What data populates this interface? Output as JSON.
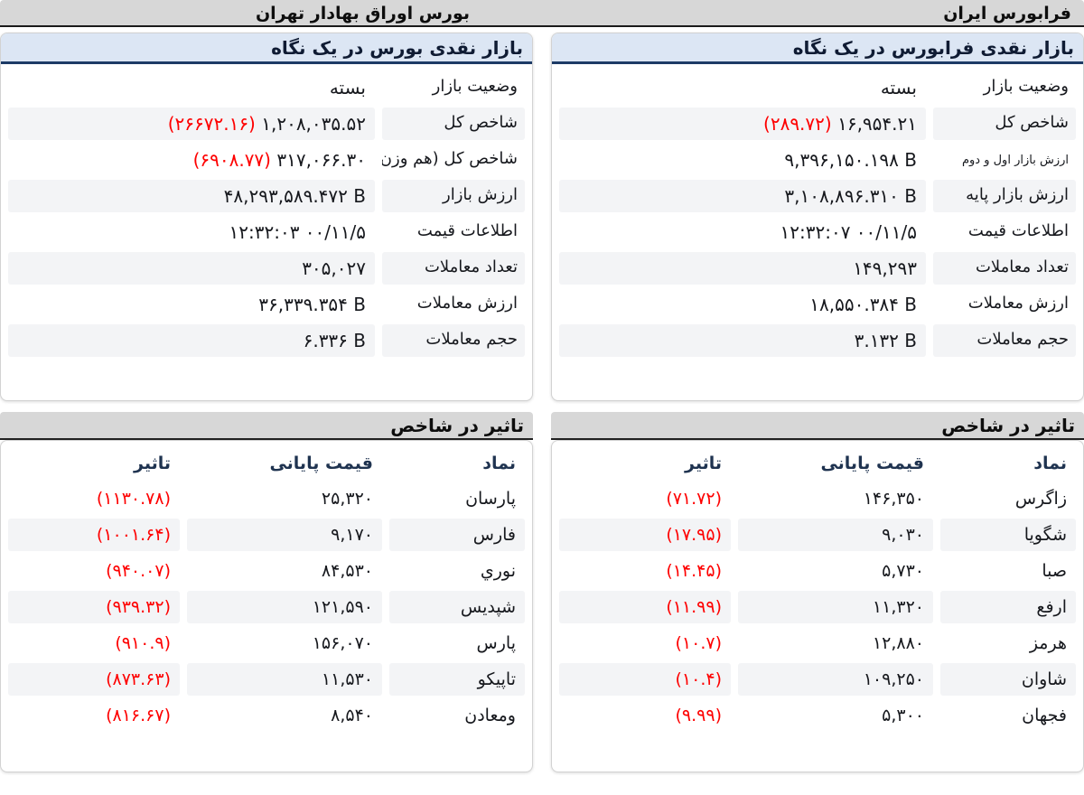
{
  "colors": {
    "negative": "#fe0000",
    "panel_header_bg": "#dce6f4",
    "bar_bg": "#d7d7d7",
    "header_text": "#0f1b33"
  },
  "columns": [
    {
      "id": "tehran-bourse",
      "header": "بورس اوراق بهادار تهران",
      "overview": {
        "title": "بازار نقدی بورس در یک نگاه",
        "rows": [
          {
            "label": "وضعیت بازار",
            "value": "بسته"
          },
          {
            "label": "شاخص کل",
            "value": "۱,۲۰۸,۰۳۵.۵۲",
            "change": "(۲۶۶۷۲.۱۶)"
          },
          {
            "label": "شاخص کل (هم وزن)",
            "value": "۳۱۷,۰۶۶.۳۰",
            "change": "(۶۹۰۸.۷۷)"
          },
          {
            "label": "ارزش بازار",
            "value": "۴۸,۲۹۳,۵۸۹.۴۷۲ B"
          },
          {
            "label": "اطلاعات قیمت",
            "value": "۱۲:۳۲:۰۳ ۰۰/۱۱/۵"
          },
          {
            "label": "تعداد معاملات",
            "value": "۳۰۵,۰۲۷"
          },
          {
            "label": "ارزش معاملات",
            "value": "۳۶,۳۳۹.۳۵۴ B"
          },
          {
            "label": "حجم معاملات",
            "value": "۶.۳۳۶ B"
          }
        ]
      },
      "impact": {
        "title": "تاثیر در شاخص",
        "headers": [
          "نماد",
          "قیمت پایانی",
          "تاثیر"
        ],
        "rows": [
          {
            "symbol": "پارسان",
            "close_price": "۲۵,۳۲۰",
            "impact": "(۱۱۳۰.۷۸)"
          },
          {
            "symbol": "فارس",
            "close_price": "۹,۱۷۰",
            "impact": "(۱۰۰۱.۶۴)"
          },
          {
            "symbol": "نوري",
            "close_price": "۸۴,۵۳۰",
            "impact": "(۹۴۰.۰۷)"
          },
          {
            "symbol": "شپدیس",
            "close_price": "۱۲۱,۵۹۰",
            "impact": "(۹۳۹.۳۲)"
          },
          {
            "symbol": "پارس",
            "close_price": "۱۵۶,۰۷۰",
            "impact": "(۹۱۰.۹)"
          },
          {
            "symbol": "تاپیکو",
            "close_price": "۱۱,۵۳۰",
            "impact": "(۸۷۳.۶۳)"
          },
          {
            "symbol": "ومعادن",
            "close_price": "۸,۵۴۰",
            "impact": "(۸۱۶.۶۷)"
          }
        ]
      }
    },
    {
      "id": "farabourse",
      "header": "فرابورس ایران",
      "overview": {
        "title": "بازار نقدی فرابورس در یک نگاه",
        "rows": [
          {
            "label": "وضعیت بازار",
            "value": "بسته"
          },
          {
            "label": "شاخص کل",
            "value": "۱۶,۹۵۴.۲۱",
            "change": "(۲۸۹.۷۲)"
          },
          {
            "label": "ارزش بازار اول و دوم",
            "value": "۹,۳۹۶,۱۵۰.۱۹۸ B",
            "small_label": true
          },
          {
            "label": "ارزش بازار پایه",
            "value": "۳,۱۰۸,۸۹۶.۳۱۰ B"
          },
          {
            "label": "اطلاعات قیمت",
            "value": "۱۲:۳۲:۰۷ ۰۰/۱۱/۵"
          },
          {
            "label": "تعداد معاملات",
            "value": "۱۴۹,۲۹۳"
          },
          {
            "label": "ارزش معاملات",
            "value": "۱۸,۵۵۰.۳۸۴ B"
          },
          {
            "label": "حجم معاملات",
            "value": "۳.۱۳۲ B"
          }
        ]
      },
      "impact": {
        "title": "تاثیر در شاخص",
        "headers": [
          "نماد",
          "قیمت پایانی",
          "تاثیر"
        ],
        "rows": [
          {
            "symbol": "زاگرس",
            "close_price": "۱۴۶,۳۵۰",
            "impact": "(۷۱.۷۲)"
          },
          {
            "symbol": "شگویا",
            "close_price": "۹,۰۳۰",
            "impact": "(۱۷.۹۵)"
          },
          {
            "symbol": "صبا",
            "close_price": "۵,۷۳۰",
            "impact": "(۱۴.۴۵)"
          },
          {
            "symbol": "ارفع",
            "close_price": "۱۱,۳۲۰",
            "impact": "(۱۱.۹۹)"
          },
          {
            "symbol": "هرمز",
            "close_price": "۱۲,۸۸۰",
            "impact": "(۱۰.۷)"
          },
          {
            "symbol": "شاوان",
            "close_price": "۱۰۹,۲۵۰",
            "impact": "(۱۰.۴)"
          },
          {
            "symbol": "فجهان",
            "close_price": "۵,۳۰۰",
            "impact": "(۹.۹۹)"
          }
        ]
      }
    }
  ]
}
